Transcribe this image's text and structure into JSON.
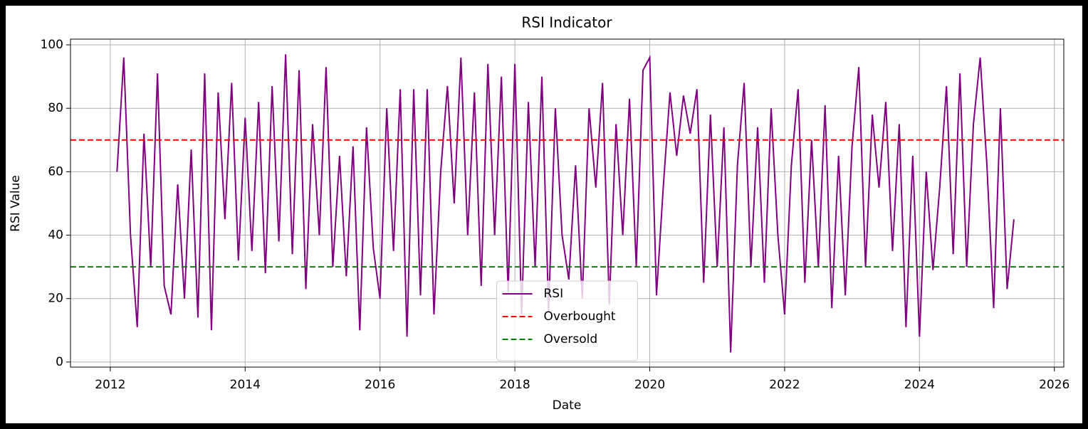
{
  "chart_data": {
    "type": "line",
    "title": "RSI Indicator",
    "x_label": "Date",
    "y_label": "RSI Value",
    "x": [
      2012.1,
      2012.2,
      2012.3,
      2012.4,
      2012.5,
      2012.6,
      2012.7,
      2012.8,
      2012.9,
      2013.0,
      2013.1,
      2013.2,
      2013.3,
      2013.4,
      2013.5,
      2013.6,
      2013.7,
      2013.8,
      2013.9,
      2014.0,
      2014.1,
      2014.2,
      2014.3,
      2014.4,
      2014.5,
      2014.6,
      2014.7,
      2014.8,
      2014.9,
      2015.0,
      2015.1,
      2015.2,
      2015.3,
      2015.4,
      2015.5,
      2015.6,
      2015.7,
      2015.8,
      2015.9,
      2016.0,
      2016.1,
      2016.2,
      2016.3,
      2016.4,
      2016.5,
      2016.6,
      2016.7,
      2016.8,
      2016.9,
      2017.0,
      2017.1,
      2017.2,
      2017.3,
      2017.4,
      2017.5,
      2017.6,
      2017.7,
      2017.8,
      2017.9,
      2018.0,
      2018.1,
      2018.2,
      2018.3,
      2018.4,
      2018.5,
      2018.6,
      2018.7,
      2018.8,
      2018.9,
      2019.0,
      2019.1,
      2019.2,
      2019.3,
      2019.4,
      2019.5,
      2019.6,
      2019.7,
      2019.8,
      2019.9,
      2020.0,
      2020.1,
      2020.2,
      2020.3,
      2020.4,
      2020.5,
      2020.6,
      2020.7,
      2020.8,
      2020.9,
      2021.0,
      2021.1,
      2021.2,
      2021.3,
      2021.4,
      2021.5,
      2021.6,
      2021.7,
      2021.8,
      2021.9,
      2022.0,
      2022.1,
      2022.2,
      2022.3,
      2022.4,
      2022.5,
      2022.6,
      2022.7,
      2022.8,
      2022.9,
      2023.0,
      2023.1,
      2023.2,
      2023.3,
      2023.4,
      2023.5,
      2023.6,
      2023.7,
      2023.8,
      2023.9,
      2024.0,
      2024.1,
      2024.2,
      2024.3,
      2024.4,
      2024.5,
      2024.6,
      2024.7,
      2024.8,
      2024.9,
      2025.0,
      2025.1,
      2025.2,
      2025.3,
      2025.4
    ],
    "series": [
      {
        "name": "RSI",
        "color": "#800080",
        "values": [
          60,
          96,
          40,
          11,
          72,
          30,
          91,
          24,
          15,
          56,
          20,
          67,
          14,
          91,
          10,
          85,
          45,
          88,
          32,
          77,
          35,
          82,
          28,
          87,
          38,
          97,
          34,
          92,
          23,
          75,
          40,
          93,
          30,
          65,
          27,
          68,
          10,
          74,
          36,
          20,
          80,
          35,
          86,
          8,
          86,
          21,
          86,
          15,
          60,
          87,
          50,
          96,
          40,
          85,
          24,
          94,
          40,
          90,
          22,
          94,
          15,
          82,
          30,
          90,
          16,
          80,
          40,
          26,
          62,
          20,
          80,
          55,
          88,
          18,
          75,
          40,
          83,
          30,
          92,
          96,
          21,
          55,
          85,
          65,
          84,
          72,
          86,
          25,
          78,
          30,
          74,
          3,
          62,
          88,
          30,
          74,
          25,
          80,
          40,
          15,
          62,
          86,
          25,
          70,
          30,
          81,
          17,
          65,
          21,
          68,
          93,
          30,
          78,
          55,
          82,
          35,
          75,
          11,
          65,
          8,
          60,
          29,
          55,
          87,
          34,
          91,
          30,
          75,
          96,
          62,
          17,
          80,
          23,
          45
        ]
      }
    ],
    "hlines": [
      {
        "name": "Overbought",
        "color": "#ff0000",
        "value": 70
      },
      {
        "name": "Oversold",
        "color": "#008000",
        "value": 30
      }
    ],
    "xlim": [
      2011.41,
      2026.14
    ],
    "xticks": [
      2012,
      2014,
      2016,
      2018,
      2020,
      2022,
      2024,
      2026
    ],
    "ylim": [
      -1.6,
      101.8
    ],
    "yticks": [
      0,
      20,
      40,
      60,
      80,
      100
    ],
    "grid": true,
    "legend": "lower center"
  }
}
